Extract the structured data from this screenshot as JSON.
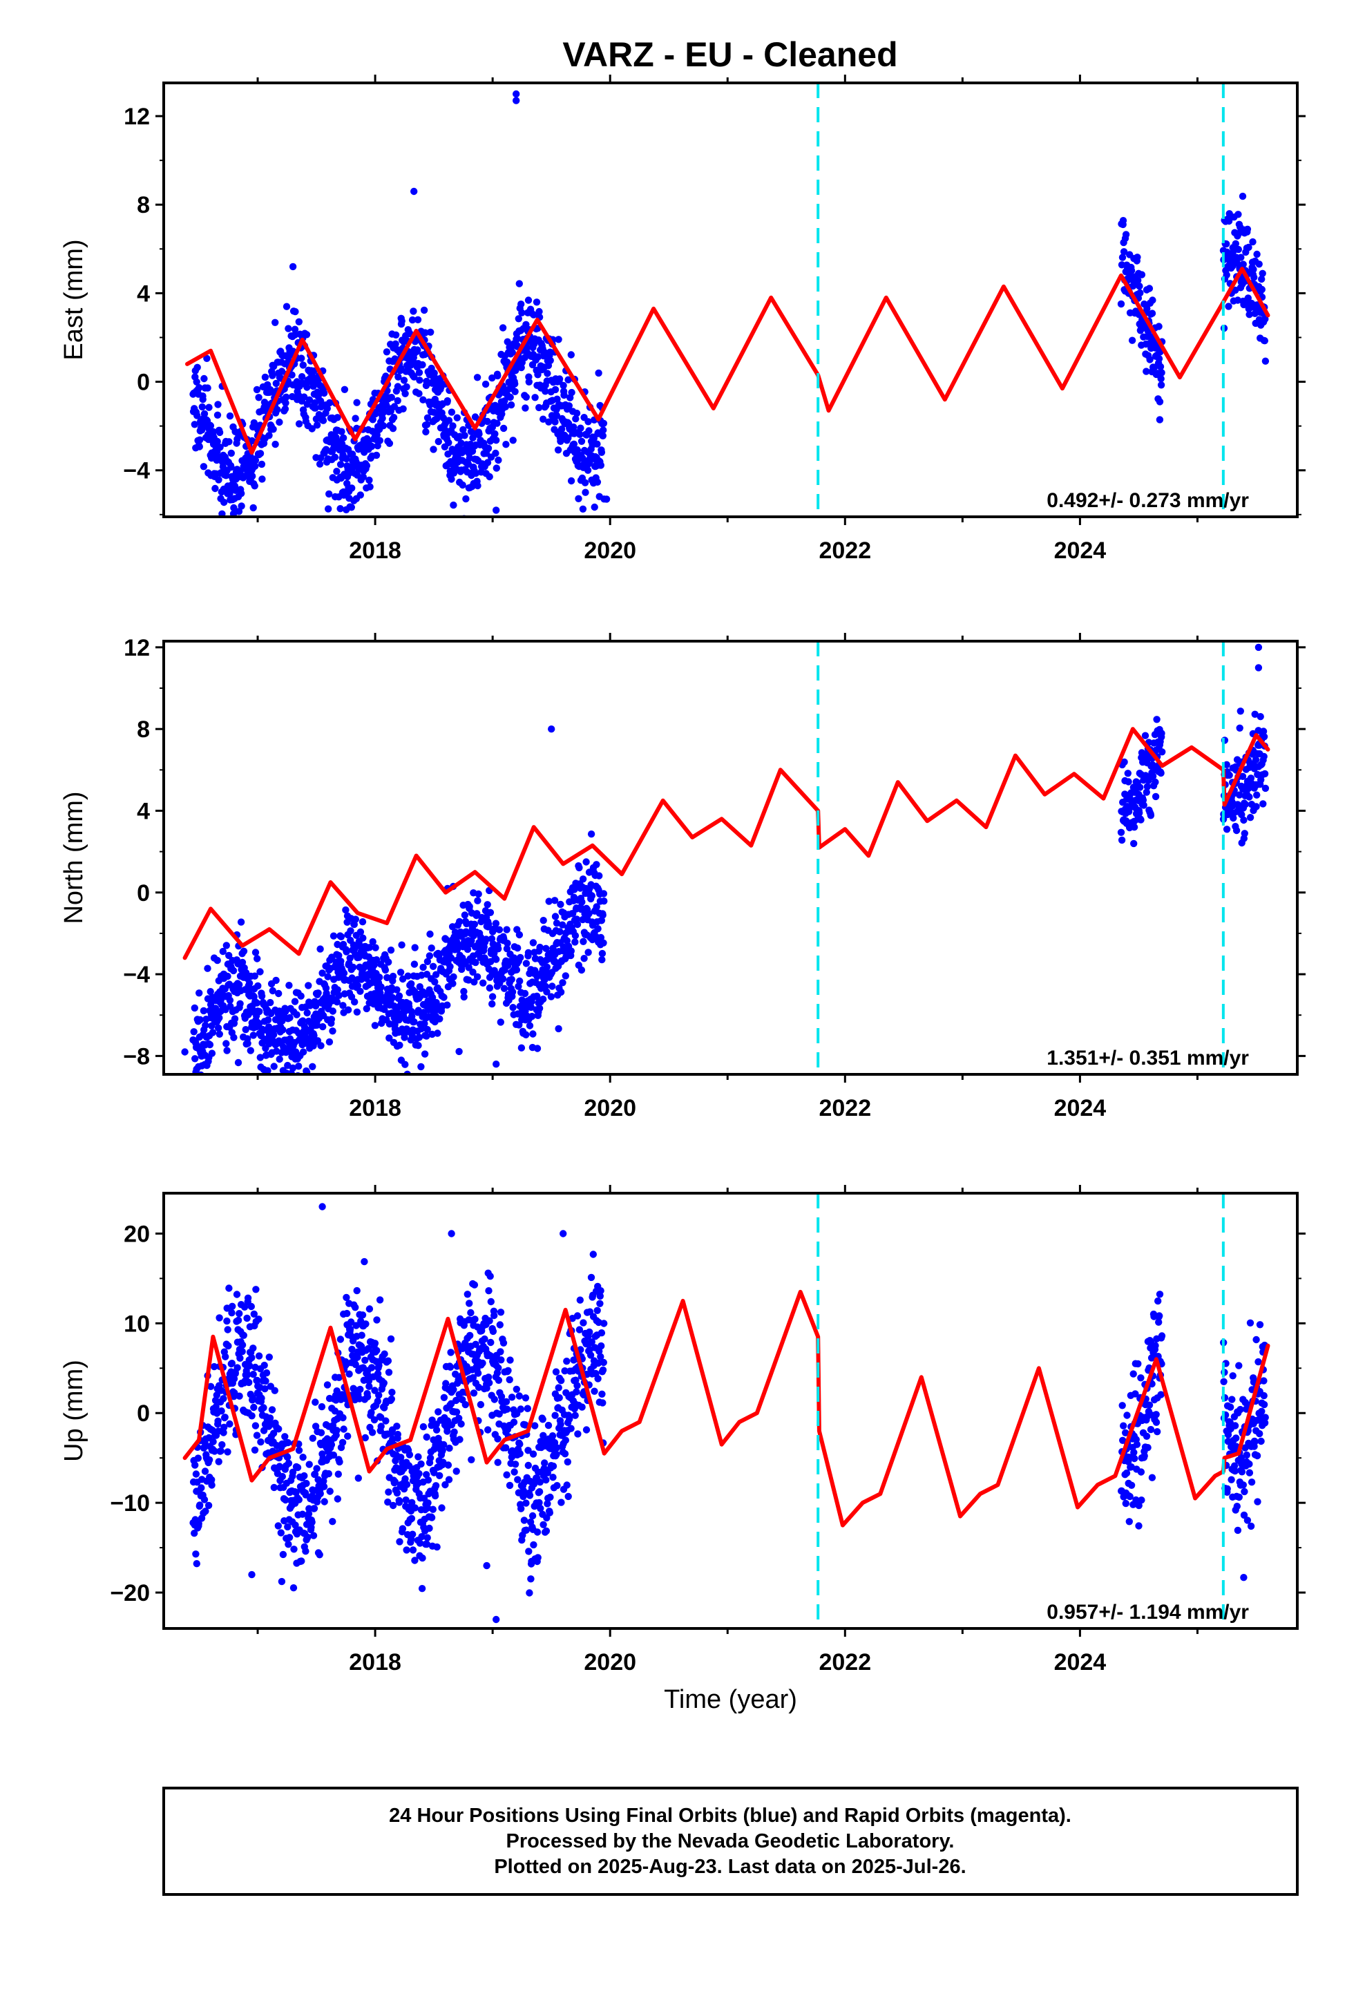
{
  "title": "VARZ  - EU - Cleaned",
  "caption": {
    "line1": "24 Hour Positions Using Final Orbits (blue) and Rapid Orbits (magenta).",
    "line2": "Processed by the Nevada Geodetic Laboratory.",
    "line3": "Plotted on 2025-Aug-23. Last data on 2025-Jul-26."
  },
  "colors": {
    "points": "#0000ff",
    "model": "#ff0000",
    "breaks": "#00e5ee",
    "frame": "#000000"
  },
  "chart_data": [
    {
      "type": "scatter",
      "ylabel": "East (mm)",
      "xlabel": "",
      "xlim": [
        2016.2,
        2025.85
      ],
      "ylim": [
        -6.1,
        13.5
      ],
      "xticks": [
        2018,
        2020,
        2022,
        2024
      ],
      "yticks": [
        -4,
        0,
        4,
        8,
        12
      ],
      "rate_label": "0.492+/- 0.273 mm/yr",
      "breaks": [
        2021.77,
        2025.22
      ],
      "model": {
        "name": "",
        "x": [
          2016.4,
          2016.6,
          2016.95,
          2017.38,
          2017.83,
          2018.35,
          2018.85,
          2019.38,
          2019.9,
          2020.37,
          2020.88,
          2021.37,
          2021.77,
          2021.86,
          2022.35,
          2022.85,
          2023.35,
          2023.85,
          2024.35,
          2024.85,
          2025.22,
          2025.38,
          2025.6
        ],
        "y": [
          0.8,
          1.4,
          -3.2,
          1.9,
          -2.6,
          2.3,
          -2.1,
          2.8,
          -1.7,
          3.3,
          -1.2,
          3.8,
          0.3,
          -1.3,
          3.8,
          -0.8,
          4.3,
          -0.3,
          4.8,
          0.2,
          3.6,
          5.1,
          3.0
        ]
      },
      "point_segments": [
        {
          "start": 2016.45,
          "end": 2019.95,
          "amplitude": 2.5,
          "phase": 0.05,
          "trend": 0.33,
          "offset": -0.75,
          "noise": 1.1
        },
        {
          "start": 2024.35,
          "end": 2024.7,
          "amplitude": 2.5,
          "phase": 0.05,
          "trend": 0.33,
          "offset": 1.25,
          "noise": 1.1
        },
        {
          "start": 2025.22,
          "end": 2025.58,
          "amplitude": 2.5,
          "phase": 0.05,
          "trend": 0.33,
          "offset": 1.5,
          "noise": 1.1
        }
      ],
      "outliers": [
        [
          2019.2,
          13.0
        ],
        [
          2019.2,
          12.7
        ],
        [
          2018.33,
          8.6
        ],
        [
          2017.3,
          5.2
        ],
        [
          2019.97,
          -5.3
        ],
        [
          2019.03,
          -5.8
        ],
        [
          2024.68,
          -0.9
        ]
      ]
    },
    {
      "type": "scatter",
      "ylabel": "North (mm)",
      "xlabel": "",
      "xlim": [
        2016.2,
        2025.85
      ],
      "ylim": [
        -8.9,
        12.3
      ],
      "xticks": [
        2018,
        2020,
        2022,
        2024
      ],
      "yticks": [
        -8,
        -4,
        0,
        4,
        8,
        12
      ],
      "rate_label": "1.351+/- 0.351 mm/yr",
      "breaks": [
        2021.77,
        2025.22
      ],
      "model": {
        "name": "",
        "x": [
          2016.38,
          2016.6,
          2016.87,
          2017.1,
          2017.35,
          2017.62,
          2017.85,
          2018.1,
          2018.35,
          2018.6,
          2018.85,
          2019.1,
          2019.35,
          2019.6,
          2019.85,
          2020.1,
          2020.45,
          2020.7,
          2020.95,
          2021.2,
          2021.45,
          2021.77,
          2021.78,
          2022.0,
          2022.2,
          2022.45,
          2022.7,
          2022.95,
          2023.2,
          2023.45,
          2023.7,
          2023.95,
          2024.2,
          2024.45,
          2024.7,
          2024.95,
          2025.22,
          2025.23,
          2025.5,
          2025.6
        ],
        "y": [
          -3.2,
          -0.8,
          -2.6,
          -1.8,
          -3.0,
          0.5,
          -1.0,
          -1.5,
          1.8,
          0.0,
          1.0,
          -0.3,
          3.2,
          1.4,
          2.3,
          0.9,
          4.5,
          2.7,
          3.6,
          2.3,
          6.0,
          4.0,
          2.2,
          3.1,
          1.8,
          5.4,
          3.5,
          4.5,
          3.2,
          6.7,
          4.8,
          5.8,
          4.6,
          8.0,
          6.2,
          7.1,
          6.0,
          4.3,
          7.7,
          7.0
        ]
      },
      "point_segments": [
        {
          "start": 2016.45,
          "end": 2019.95,
          "amplitude": 1.6,
          "phase": 0.55,
          "trend": 1.35,
          "offset": -2.1,
          "noise": 1.2
        },
        {
          "start": 2024.35,
          "end": 2024.7,
          "amplitude": 1.6,
          "phase": 0.55,
          "trend": 1.35,
          "offset": -0.8,
          "noise": 1.0
        },
        {
          "start": 2025.22,
          "end": 2025.58,
          "amplitude": 1.6,
          "phase": 0.55,
          "trend": 1.35,
          "offset": -0.9,
          "noise": 1.2
        }
      ],
      "outliers": [
        [
          2016.38,
          -7.8
        ],
        [
          2019.03,
          -8.4
        ],
        [
          2017.1,
          -7.0
        ],
        [
          2025.52,
          12.0
        ],
        [
          2019.5,
          8.0
        ],
        [
          2025.52,
          11.0
        ],
        [
          2019.0,
          -5.1
        ]
      ]
    },
    {
      "type": "scatter",
      "ylabel": "Up (mm)",
      "xlabel": "Time (year)",
      "xlim": [
        2016.2,
        2025.85
      ],
      "ylim": [
        -24,
        24.5
      ],
      "xticks": [
        2018,
        2020,
        2022,
        2024
      ],
      "yticks": [
        -20,
        -10,
        0,
        10,
        20
      ],
      "rate_label": "0.957+/- 1.194 mm/yr",
      "breaks": [
        2021.77,
        2025.22
      ],
      "model": {
        "name": "",
        "x": [
          2016.38,
          2016.5,
          2016.62,
          2016.95,
          2017.1,
          2017.3,
          2017.62,
          2017.95,
          2018.1,
          2018.3,
          2018.62,
          2018.95,
          2019.1,
          2019.3,
          2019.62,
          2019.95,
          2020.1,
          2020.25,
          2020.62,
          2020.95,
          2021.1,
          2021.25,
          2021.62,
          2021.77,
          2021.78,
          2021.98,
          2022.15,
          2022.3,
          2022.65,
          2022.98,
          2023.15,
          2023.3,
          2023.65,
          2023.98,
          2024.15,
          2024.3,
          2024.65,
          2024.98,
          2025.15,
          2025.22,
          2025.23,
          2025.35,
          2025.6
        ],
        "y": [
          -5.0,
          -3.0,
          8.5,
          -7.5,
          -5.0,
          -4.0,
          9.5,
          -6.5,
          -4.0,
          -3.0,
          10.5,
          -5.5,
          -3.0,
          -2.0,
          11.5,
          -4.5,
          -2.0,
          -1.0,
          12.5,
          -3.5,
          -1.0,
          0.0,
          13.5,
          8.5,
          -2.0,
          -12.5,
          -10.0,
          -9.0,
          4.0,
          -11.5,
          -9.0,
          -8.0,
          5.0,
          -10.5,
          -8.0,
          -7.0,
          6.0,
          -9.5,
          -7.0,
          -6.5,
          -5.0,
          -4.5,
          7.5
        ]
      },
      "point_segments": [
        {
          "start": 2016.45,
          "end": 2019.95,
          "amplitude": 8.5,
          "phase": 0.62,
          "trend": 0.96,
          "offset": 0.0,
          "noise": 4.0
        },
        {
          "start": 2024.35,
          "end": 2024.7,
          "amplitude": 8.5,
          "phase": 0.62,
          "trend": 0.96,
          "offset": -1.5,
          "noise": 4.0
        },
        {
          "start": 2025.22,
          "end": 2025.58,
          "amplitude": 8.5,
          "phase": 0.62,
          "trend": 0.96,
          "offset": -1.0,
          "noise": 4.0
        }
      ],
      "outliers": [
        [
          2017.55,
          23.0
        ],
        [
          2019.03,
          -23.0
        ],
        [
          2016.95,
          -18.0
        ],
        [
          2018.95,
          -17.0
        ],
        [
          2018.65,
          20.0
        ],
        [
          2019.6,
          20.0
        ]
      ]
    }
  ]
}
